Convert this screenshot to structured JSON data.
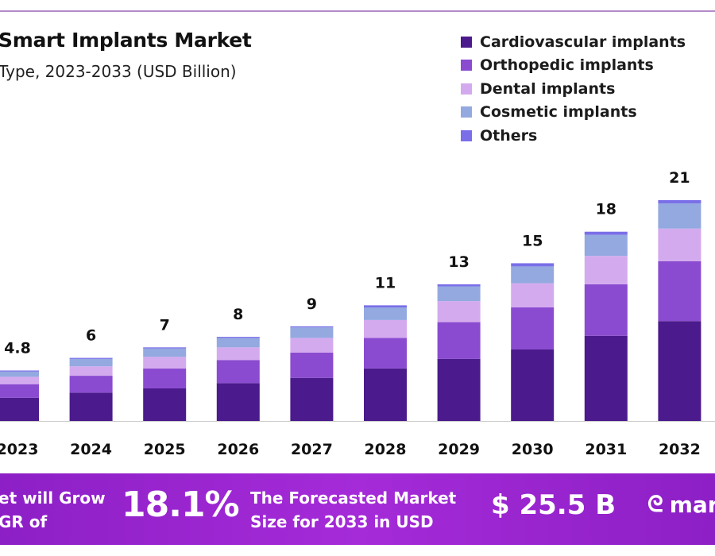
{
  "chart_data": {
    "type": "bar",
    "stacked": true,
    "title": "Smart Implants Market",
    "subtitle": "Type, 2023-2033 (USD Billion)",
    "categories": [
      "2023",
      "2024",
      "2025",
      "2026",
      "2027",
      "2028",
      "2029",
      "2030",
      "2031",
      "2032"
    ],
    "totals": [
      4.8,
      6,
      7,
      8,
      9,
      11,
      13,
      15,
      18,
      21
    ],
    "total_labels": [
      "4.8",
      "6",
      "7",
      "8",
      "9",
      "11",
      "13",
      "15",
      "18",
      "21"
    ],
    "series": [
      {
        "name": "Cardiovascular implants",
        "color": "#4b1a8c",
        "values": [
          2.2,
          2.7,
          3.1,
          3.6,
          4.1,
          5.0,
          5.9,
          6.8,
          8.1,
          9.5
        ]
      },
      {
        "name": "Orthopedic implants",
        "color": "#8a4bd0",
        "values": [
          1.3,
          1.6,
          1.9,
          2.2,
          2.4,
          2.9,
          3.5,
          4.0,
          4.9,
          5.7
        ]
      },
      {
        "name": "Dental implants",
        "color": "#d4aaee",
        "values": [
          0.7,
          0.9,
          1.1,
          1.2,
          1.4,
          1.7,
          2.0,
          2.3,
          2.7,
          3.1
        ]
      },
      {
        "name": "Cosmetic implants",
        "color": "#93a9e0",
        "values": [
          0.5,
          0.7,
          0.8,
          0.9,
          1.0,
          1.2,
          1.4,
          1.6,
          2.0,
          2.4
        ]
      },
      {
        "name": "Others",
        "color": "#7a6fe8",
        "values": [
          0.1,
          0.1,
          0.1,
          0.1,
          0.1,
          0.2,
          0.2,
          0.3,
          0.3,
          0.3
        ]
      }
    ],
    "ylim": [
      0,
      21
    ],
    "grid": false,
    "legend": "top-right"
  },
  "banner": {
    "text1_line1": "et will Grow",
    "text1_line2": "GR of",
    "cagr": "18.1%",
    "text2_line1": "The Forecasted Market",
    "text2_line2": "Size for 2033 in USD",
    "market_size": "$ 25.5 B",
    "logo_text": "mar",
    "color": "#9a25cf"
  }
}
